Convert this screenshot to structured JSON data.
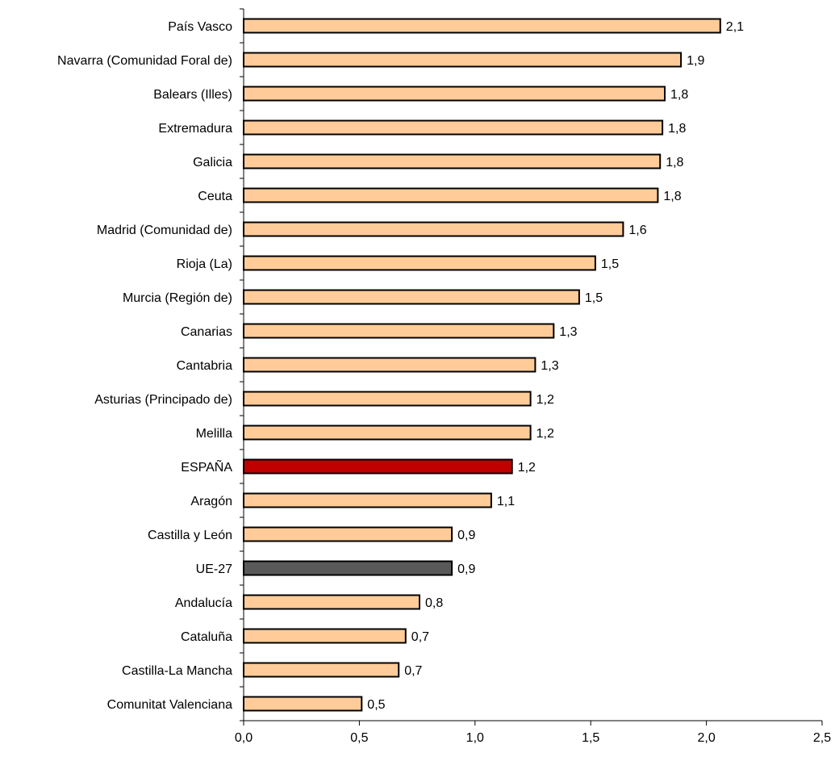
{
  "chart_data": {
    "type": "bar",
    "orientation": "horizontal",
    "categories": [
      "País Vasco",
      "Navarra (Comunidad Foral de)",
      "Balears (Illes)",
      "Extremadura",
      "Galicia",
      "Ceuta",
      "Madrid (Comunidad de)",
      "Rioja (La)",
      "Murcia (Región de)",
      "Canarias",
      "Cantabria",
      "Asturias (Principado de)",
      "Melilla",
      "ESPAÑA",
      "Aragón",
      "Castilla y León",
      "UE-27",
      "Andalucía",
      "Cataluña",
      "Castilla-La Mancha",
      "Comunitat Valenciana"
    ],
    "values": [
      2.06,
      1.89,
      1.82,
      1.81,
      1.8,
      1.79,
      1.64,
      1.52,
      1.45,
      1.34,
      1.26,
      1.24,
      1.24,
      1.16,
      1.07,
      0.9,
      0.9,
      0.76,
      0.7,
      0.67,
      0.51
    ],
    "value_labels": [
      "2,1",
      "1,9",
      "1,8",
      "1,8",
      "1,8",
      "1,8",
      "1,6",
      "1,5",
      "1,5",
      "1,3",
      "1,3",
      "1,2",
      "1,2",
      "1,2",
      "1,1",
      "0,9",
      "0,9",
      "0,8",
      "0,7",
      "0,7",
      "0,5"
    ],
    "xlim": [
      0,
      2.5
    ],
    "xticks": [
      0,
      0.5,
      1.0,
      1.5,
      2.0,
      2.5
    ],
    "xtick_labels": [
      "0,0",
      "0,5",
      "1,0",
      "1,5",
      "2,0",
      "2,5"
    ],
    "title": "",
    "xlabel": "",
    "ylabel": "",
    "grid": false,
    "legend": "none",
    "colors": {
      "default_bar": "#FFCC99",
      "highlight": {
        "ESPAÑA": "#C00000",
        "UE-27": "#595959"
      },
      "bar_outline": "#000000",
      "axis": "#000000"
    }
  }
}
